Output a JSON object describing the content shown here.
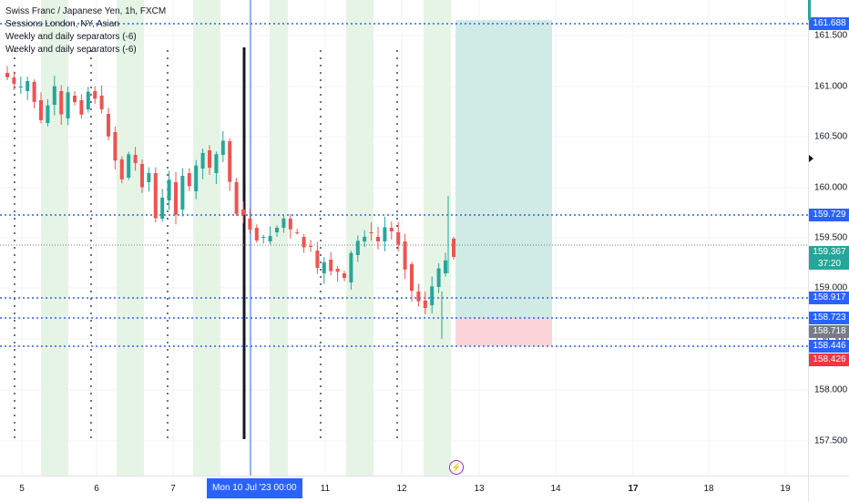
{
  "legend": {
    "title": "Swiss Franc / Japanese Yen, 1h, FXCM",
    "indicators": [
      "Sessions London, NY, Asian",
      "Weekly and daily separators (-6)",
      "Weekly and daily separators (-6)"
    ]
  },
  "price_axis": {
    "ticks": [
      "161.500",
      "161.000",
      "160.500",
      "160.000",
      "159.500",
      "159.000",
      "158.500",
      "158.000",
      "157.500"
    ],
    "tags": {
      "top": {
        "label": "161.688",
        "color": "#2962ff"
      },
      "level_1": {
        "label": "159.729",
        "color": "#2962ff"
      },
      "current": {
        "label": "159.367",
        "countdown": "37:20",
        "color": "#26a69a"
      },
      "level_2": {
        "label": "158.917",
        "color": "#2962ff"
      },
      "level_3": {
        "label": "158.723",
        "color": "#2962ff"
      },
      "grey": {
        "label": "158.718",
        "color": "#787b86"
      },
      "level_4": {
        "label": "158.446",
        "color": "#2962ff"
      },
      "stop": {
        "label": "158.426",
        "color": "#f23645"
      }
    }
  },
  "time_axis": {
    "labels": [
      {
        "text": "5",
        "bold": false
      },
      {
        "text": "6",
        "bold": false
      },
      {
        "text": "7",
        "bold": false
      },
      {
        "text": "11",
        "bold": false
      },
      {
        "text": "12",
        "bold": false
      },
      {
        "text": "13",
        "bold": false
      },
      {
        "text": "14",
        "bold": false
      },
      {
        "text": "17",
        "bold": true
      },
      {
        "text": "18",
        "bold": false
      },
      {
        "text": "19",
        "bold": false
      }
    ],
    "crosshair_label": "Mon 10 Jul '23   00:00"
  },
  "colors": {
    "bull": "#26a69a",
    "bear": "#ef5350",
    "session": "#e6f4e6",
    "profit_zone": "#d0ebe6",
    "loss_zone": "#fbd5da",
    "dotted_line": "#2962ff"
  },
  "icons": {
    "alert": "flash-icon"
  }
}
